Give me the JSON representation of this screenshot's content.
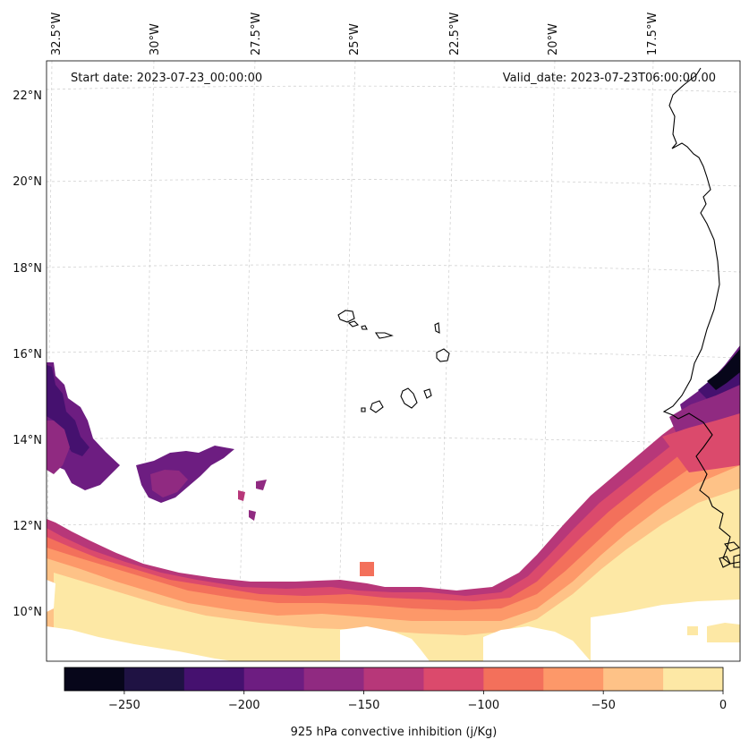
{
  "annotations": {
    "start_date": "Start date: 2023-07-23_00:00:00",
    "valid_date": "Valid_date: 2023-07-23T06:00:00.00"
  },
  "axes": {
    "lon_ticks": [
      "32.5°W",
      "30°W",
      "27.5°W",
      "25°W",
      "22.5°W",
      "20°W",
      "17.5°W"
    ],
    "lat_ticks": [
      "22°N",
      "20°N",
      "18°N",
      "16°N",
      "14°N",
      "12°N",
      "10°N"
    ],
    "gridlines": true
  },
  "colorbar": {
    "label": "925 hPa convective inhibition (j/Kg)",
    "ticks": [
      "−250",
      "−200",
      "−150",
      "−100",
      "−50",
      "0"
    ],
    "levels": [
      -275,
      -250,
      -225,
      -200,
      -175,
      -150,
      -125,
      -100,
      -75,
      -50,
      -25,
      0
    ],
    "colors": [
      "#07061a",
      "#1f1243",
      "#45116f",
      "#6d1d81",
      "#902a81",
      "#b73779",
      "#db4a6c",
      "#f3705b",
      "#fd9869",
      "#fec287",
      "#fde8a5"
    ]
  }
}
